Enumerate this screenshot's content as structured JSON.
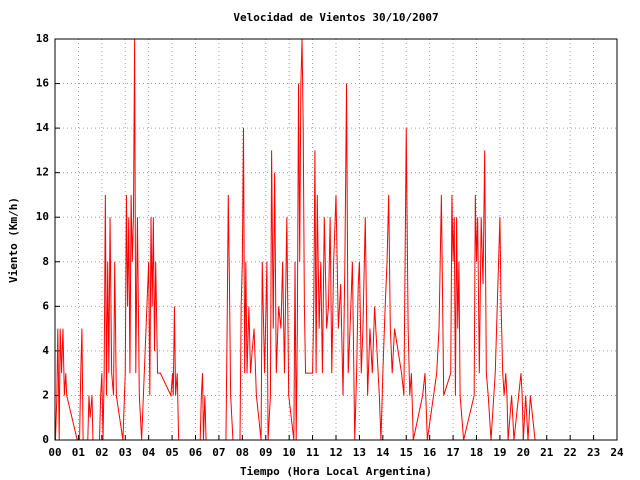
{
  "chart_data": {
    "type": "line",
    "title": "Velocidad de Vientos 30/10/2007",
    "xlabel": "Tiempo (Hora Local Argentina)",
    "ylabel": "Viento (Km/h)",
    "color": "#ff0000",
    "grid": true,
    "xlim": [
      0,
      24
    ],
    "ylim": [
      0,
      18
    ],
    "xticks": [
      {
        "value": 0,
        "label": "00"
      },
      {
        "value": 1,
        "label": "01"
      },
      {
        "value": 2,
        "label": "02"
      },
      {
        "value": 3,
        "label": "03"
      },
      {
        "value": 4,
        "label": "04"
      },
      {
        "value": 5,
        "label": "05"
      },
      {
        "value": 6,
        "label": "06"
      },
      {
        "value": 7,
        "label": "07"
      },
      {
        "value": 8,
        "label": "08"
      },
      {
        "value": 9,
        "label": "09"
      },
      10,
      11,
      12,
      13,
      14,
      15,
      16,
      17,
      18,
      19,
      20,
      21,
      22,
      23,
      24
    ],
    "yticks": [
      0,
      2,
      4,
      6,
      8,
      10,
      12,
      14,
      16,
      18
    ],
    "x": [
      0.02,
      0.08,
      0.12,
      0.18,
      0.22,
      0.28,
      0.34,
      0.4,
      0.46,
      0.5,
      0.95,
      1.05,
      1.1,
      1.15,
      1.2,
      1.4,
      1.45,
      1.5,
      1.58,
      1.62,
      1.9,
      1.95,
      2.0,
      2.05,
      2.1,
      2.15,
      2.2,
      2.25,
      2.3,
      2.35,
      2.42,
      2.5,
      2.55,
      2.62,
      2.9,
      3.0,
      3.05,
      3.1,
      3.15,
      3.2,
      3.25,
      3.3,
      3.35,
      3.4,
      3.45,
      3.52,
      3.6,
      3.7,
      4.0,
      4.05,
      4.1,
      4.15,
      4.2,
      4.25,
      4.3,
      4.38,
      4.5,
      4.95,
      5.02,
      5.05,
      5.1,
      5.15,
      5.22,
      5.28,
      6.2,
      6.25,
      6.3,
      6.34,
      6.4,
      6.45,
      7.3,
      7.35,
      7.4,
      7.45,
      7.5,
      7.6,
      7.9,
      7.95,
      8.0,
      8.05,
      8.1,
      8.15,
      8.2,
      8.28,
      8.35,
      8.42,
      8.5,
      8.6,
      8.8,
      8.85,
      8.95,
      9.05,
      9.1,
      9.2,
      9.25,
      9.32,
      9.38,
      9.45,
      9.55,
      9.65,
      9.72,
      9.8,
      9.9,
      9.98,
      10.2,
      10.25,
      10.3,
      10.35,
      10.4,
      10.45,
      10.5,
      10.55,
      10.6,
      10.65,
      10.7,
      11.0,
      11.05,
      11.1,
      11.15,
      11.2,
      11.28,
      11.35,
      11.42,
      11.5,
      11.6,
      11.68,
      11.75,
      11.82,
      11.9,
      12.0,
      12.1,
      12.2,
      12.3,
      12.38,
      12.45,
      12.52,
      12.6,
      12.7,
      12.8,
      12.88,
      12.95,
      13.0,
      13.08,
      13.15,
      13.25,
      13.35,
      13.45,
      13.55,
      13.65,
      13.75,
      13.85,
      13.92,
      14.0,
      14.1,
      14.18,
      14.25,
      14.32,
      14.4,
      14.5,
      14.65,
      14.8,
      14.9,
      15.0,
      15.08,
      15.15,
      15.22,
      15.3,
      15.7,
      15.8,
      15.9,
      16.3,
      16.4,
      16.5,
      16.6,
      16.9,
      16.95,
      17.0,
      17.05,
      17.1,
      17.15,
      17.2,
      17.25,
      17.3,
      17.45,
      17.9,
      17.95,
      18.0,
      18.05,
      18.12,
      18.2,
      18.28,
      18.35,
      18.42,
      18.5,
      18.62,
      18.8,
      19.0,
      19.05,
      19.12,
      19.18,
      19.25,
      19.3,
      19.35,
      19.5,
      19.6,
      19.9,
      19.95,
      20.0,
      20.1,
      20.2,
      20.3,
      20.4,
      20.5
    ],
    "values": [
      0,
      2,
      5,
      0,
      5,
      3,
      5,
      2,
      3,
      2,
      0,
      0,
      3,
      5,
      0,
      0,
      2,
      1,
      2,
      0,
      0,
      2,
      3,
      0,
      3,
      11,
      2,
      8,
      3,
      10,
      3,
      2,
      8,
      2,
      0,
      3,
      11,
      6,
      10,
      3,
      11,
      8,
      10,
      18,
      3,
      10,
      2,
      0,
      8,
      2,
      10,
      6,
      10,
      4,
      8,
      3,
      3,
      2,
      3,
      2,
      6,
      2,
      3,
      0,
      0,
      2,
      3,
      0,
      2,
      0,
      0,
      5,
      11,
      7,
      2,
      0,
      0,
      6,
      8,
      14,
      3,
      8,
      3,
      6,
      3,
      4,
      5,
      2,
      0,
      8,
      3,
      8,
      0,
      2,
      13,
      5,
      12,
      3,
      6,
      5,
      8,
      3,
      10,
      2,
      0,
      8,
      0,
      5,
      16,
      8,
      16,
      18,
      14,
      6,
      3,
      3,
      6,
      13,
      3,
      11,
      5,
      8,
      3,
      10,
      5,
      6,
      10,
      3,
      8,
      11,
      5,
      7,
      2,
      8,
      16,
      3,
      5,
      8,
      0,
      3,
      7,
      8,
      3,
      5,
      10,
      2,
      5,
      3,
      6,
      4,
      2,
      0,
      3,
      6,
      8,
      11,
      5,
      3,
      5,
      4,
      3,
      2,
      14,
      5,
      2,
      3,
      0,
      2,
      3,
      0,
      3,
      5,
      11,
      2,
      3,
      11,
      8,
      10,
      2,
      10,
      5,
      8,
      2,
      0,
      2,
      11,
      8,
      10,
      3,
      10,
      7,
      13,
      3,
      2,
      0,
      3,
      10,
      6,
      3,
      2,
      3,
      2,
      0,
      2,
      0,
      3,
      2,
      0,
      2,
      0,
      2,
      1,
      0
    ]
  }
}
